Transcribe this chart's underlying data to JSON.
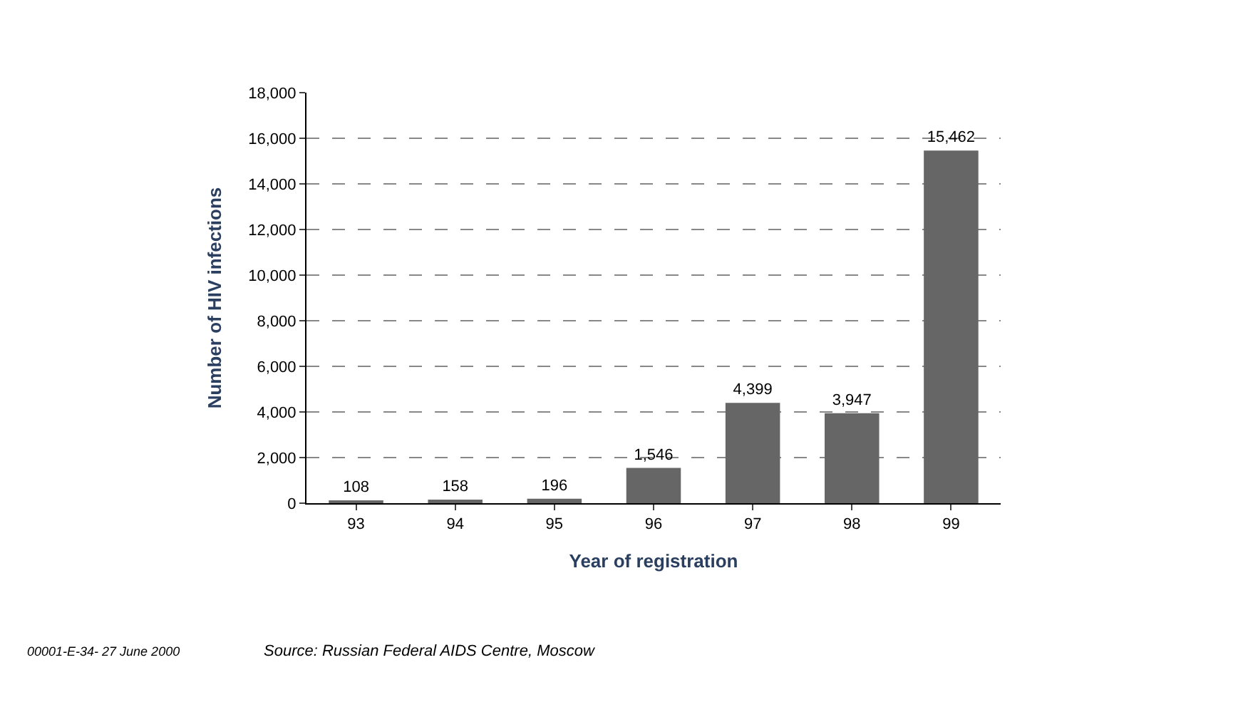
{
  "chart_data": {
    "type": "bar",
    "xlabel": "Year of registration",
    "ylabel": "Number of HIV infections",
    "categories": [
      "93",
      "94",
      "95",
      "96",
      "97",
      "98",
      "99"
    ],
    "values": [
      108,
      158,
      196,
      1546,
      4399,
      3947,
      15462
    ],
    "color": "#666666",
    "ylim": [
      0,
      18000
    ],
    "yticks": [
      {
        "value": 0,
        "label": "0"
      },
      {
        "value": 2000,
        "label": "2,000"
      },
      {
        "value": 4000,
        "label": "4,000"
      },
      {
        "value": 6000,
        "label": "6,000"
      },
      {
        "value": 8000,
        "label": "8,000"
      },
      {
        "value": 10000,
        "label": "10,000"
      },
      {
        "value": 12000,
        "label": "12,000"
      },
      {
        "value": 14000,
        "label": "14,000"
      },
      {
        "value": 16000,
        "label": "16,000"
      },
      {
        "value": 18000,
        "label": "18,000"
      }
    ],
    "value_labels": [
      "108",
      "158",
      "196",
      "1,546",
      "4,399",
      "3,947",
      "15,462"
    ],
    "grid": "y",
    "annotations": [
      "00001-E-34- 27 June 2000",
      "Source: Russian Federal AIDS Centre, Moscow"
    ]
  }
}
